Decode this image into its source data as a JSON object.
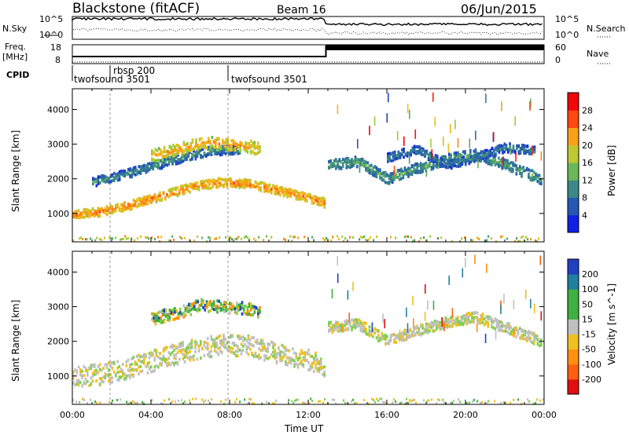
{
  "header": {
    "station": "Blackstone (fitACF)",
    "beam": "Beam 16",
    "date": "06/Jun/2015"
  },
  "noise_panel": {
    "left_label": "N.Sky",
    "right_label": "N.Search",
    "left_ticks": [
      "10^5",
      "10^0"
    ],
    "right_ticks": [
      "10^5",
      "10^0"
    ]
  },
  "freq_panel": {
    "left_label_1": "Freq.",
    "left_label_2": "[MHz]",
    "right_label": "Nave",
    "left_ticks": [
      "18",
      "8"
    ],
    "right_ticks": [
      "60",
      "0"
    ]
  },
  "cpid": {
    "label": "CPID",
    "segments": [
      {
        "name": "twofsound 3501",
        "start_h": 0.0
      },
      {
        "name": "rbsp 200",
        "start_h": 1.9
      },
      {
        "name": "twofsound 3501",
        "start_h": 7.9
      }
    ]
  },
  "chart_data": [
    {
      "type": "heatmap",
      "title": "",
      "xlabel": "",
      "ylabel": "Slant Range [km]",
      "xlim_h": [
        0,
        24
      ],
      "ylim_km": [
        180,
        4600
      ],
      "y_ticks": [
        "1000",
        "2000",
        "3000",
        "4000"
      ],
      "colorbar": {
        "label": "Power [dB]",
        "ticks": [
          "4",
          "8",
          "12",
          "16",
          "20",
          "24",
          "28"
        ],
        "range": [
          0,
          30
        ]
      },
      "bands": [
        {
          "t": [
            0.0,
            1.5,
            3.0,
            4.5,
            6.0,
            7.5,
            9.0,
            10.5,
            12.0,
            12.8
          ],
          "range": [
            950,
            1050,
            1250,
            1500,
            1750,
            1900,
            1850,
            1650,
            1450,
            1300
          ],
          "width": 250,
          "value": 22
        },
        {
          "t": [
            1.0,
            2.5,
            4.0,
            5.5,
            7.0,
            8.5
          ],
          "range": [
            1900,
            2100,
            2350,
            2600,
            2800,
            2850
          ],
          "width": 250,
          "value": 9
        },
        {
          "t": [
            4.0,
            5.5,
            6.5,
            7.5,
            8.8,
            9.5
          ],
          "range": [
            2650,
            2850,
            3050,
            3000,
            2950,
            2850
          ],
          "width": 350,
          "value": 20
        },
        {
          "t": [
            13.0,
            14.5,
            16.0,
            17.5,
            19.0,
            20.5,
            22.0,
            23.8
          ],
          "range": [
            2400,
            2500,
            2000,
            2300,
            2550,
            2700,
            2400,
            2000
          ],
          "width": 300,
          "value": 11
        },
        {
          "t": [
            16.0,
            17.5,
            19.0,
            20.5,
            22.0,
            23.5
          ],
          "range": [
            2600,
            2850,
            2400,
            2600,
            2900,
            2800
          ],
          "width": 250,
          "value": 8
        }
      ]
    },
    {
      "type": "heatmap",
      "title": "",
      "xlabel": "Time UT",
      "ylabel": "Slant Range [km]",
      "xlim_h": [
        0,
        24
      ],
      "ylim_km": [
        180,
        4600
      ],
      "y_ticks": [
        "1000",
        "2000",
        "3000",
        "4000"
      ],
      "x_ticks": [
        "00:00",
        "04:00",
        "08:00",
        "12:00",
        "16:00",
        "20:00",
        "00:00"
      ],
      "colorbar": {
        "label": "Velocity [m s^-1]",
        "ticks": [
          "200",
          "100",
          "50",
          "15",
          "-15",
          "-50",
          "-100",
          "-200"
        ],
        "range": [
          -250,
          250
        ]
      },
      "bands": [
        {
          "t": [
            0.0,
            1.5,
            3.0,
            4.5,
            6.0,
            7.5,
            9.0,
            10.5,
            12.0,
            12.8
          ],
          "range": [
            950,
            1050,
            1250,
            1500,
            1750,
            1900,
            1850,
            1650,
            1450,
            1300
          ],
          "width": 600,
          "value": 0
        },
        {
          "t": [
            4.0,
            5.5,
            6.5,
            7.5,
            8.8,
            9.5
          ],
          "range": [
            2650,
            2850,
            3050,
            3000,
            2950,
            2850
          ],
          "width": 350,
          "value": 40
        },
        {
          "t": [
            13.0,
            14.5,
            16.0,
            17.5,
            19.0,
            20.5,
            22.0,
            23.8
          ],
          "range": [
            2400,
            2500,
            2000,
            2300,
            2550,
            2700,
            2400,
            2000
          ],
          "width": 300,
          "value": 0
        }
      ]
    }
  ]
}
